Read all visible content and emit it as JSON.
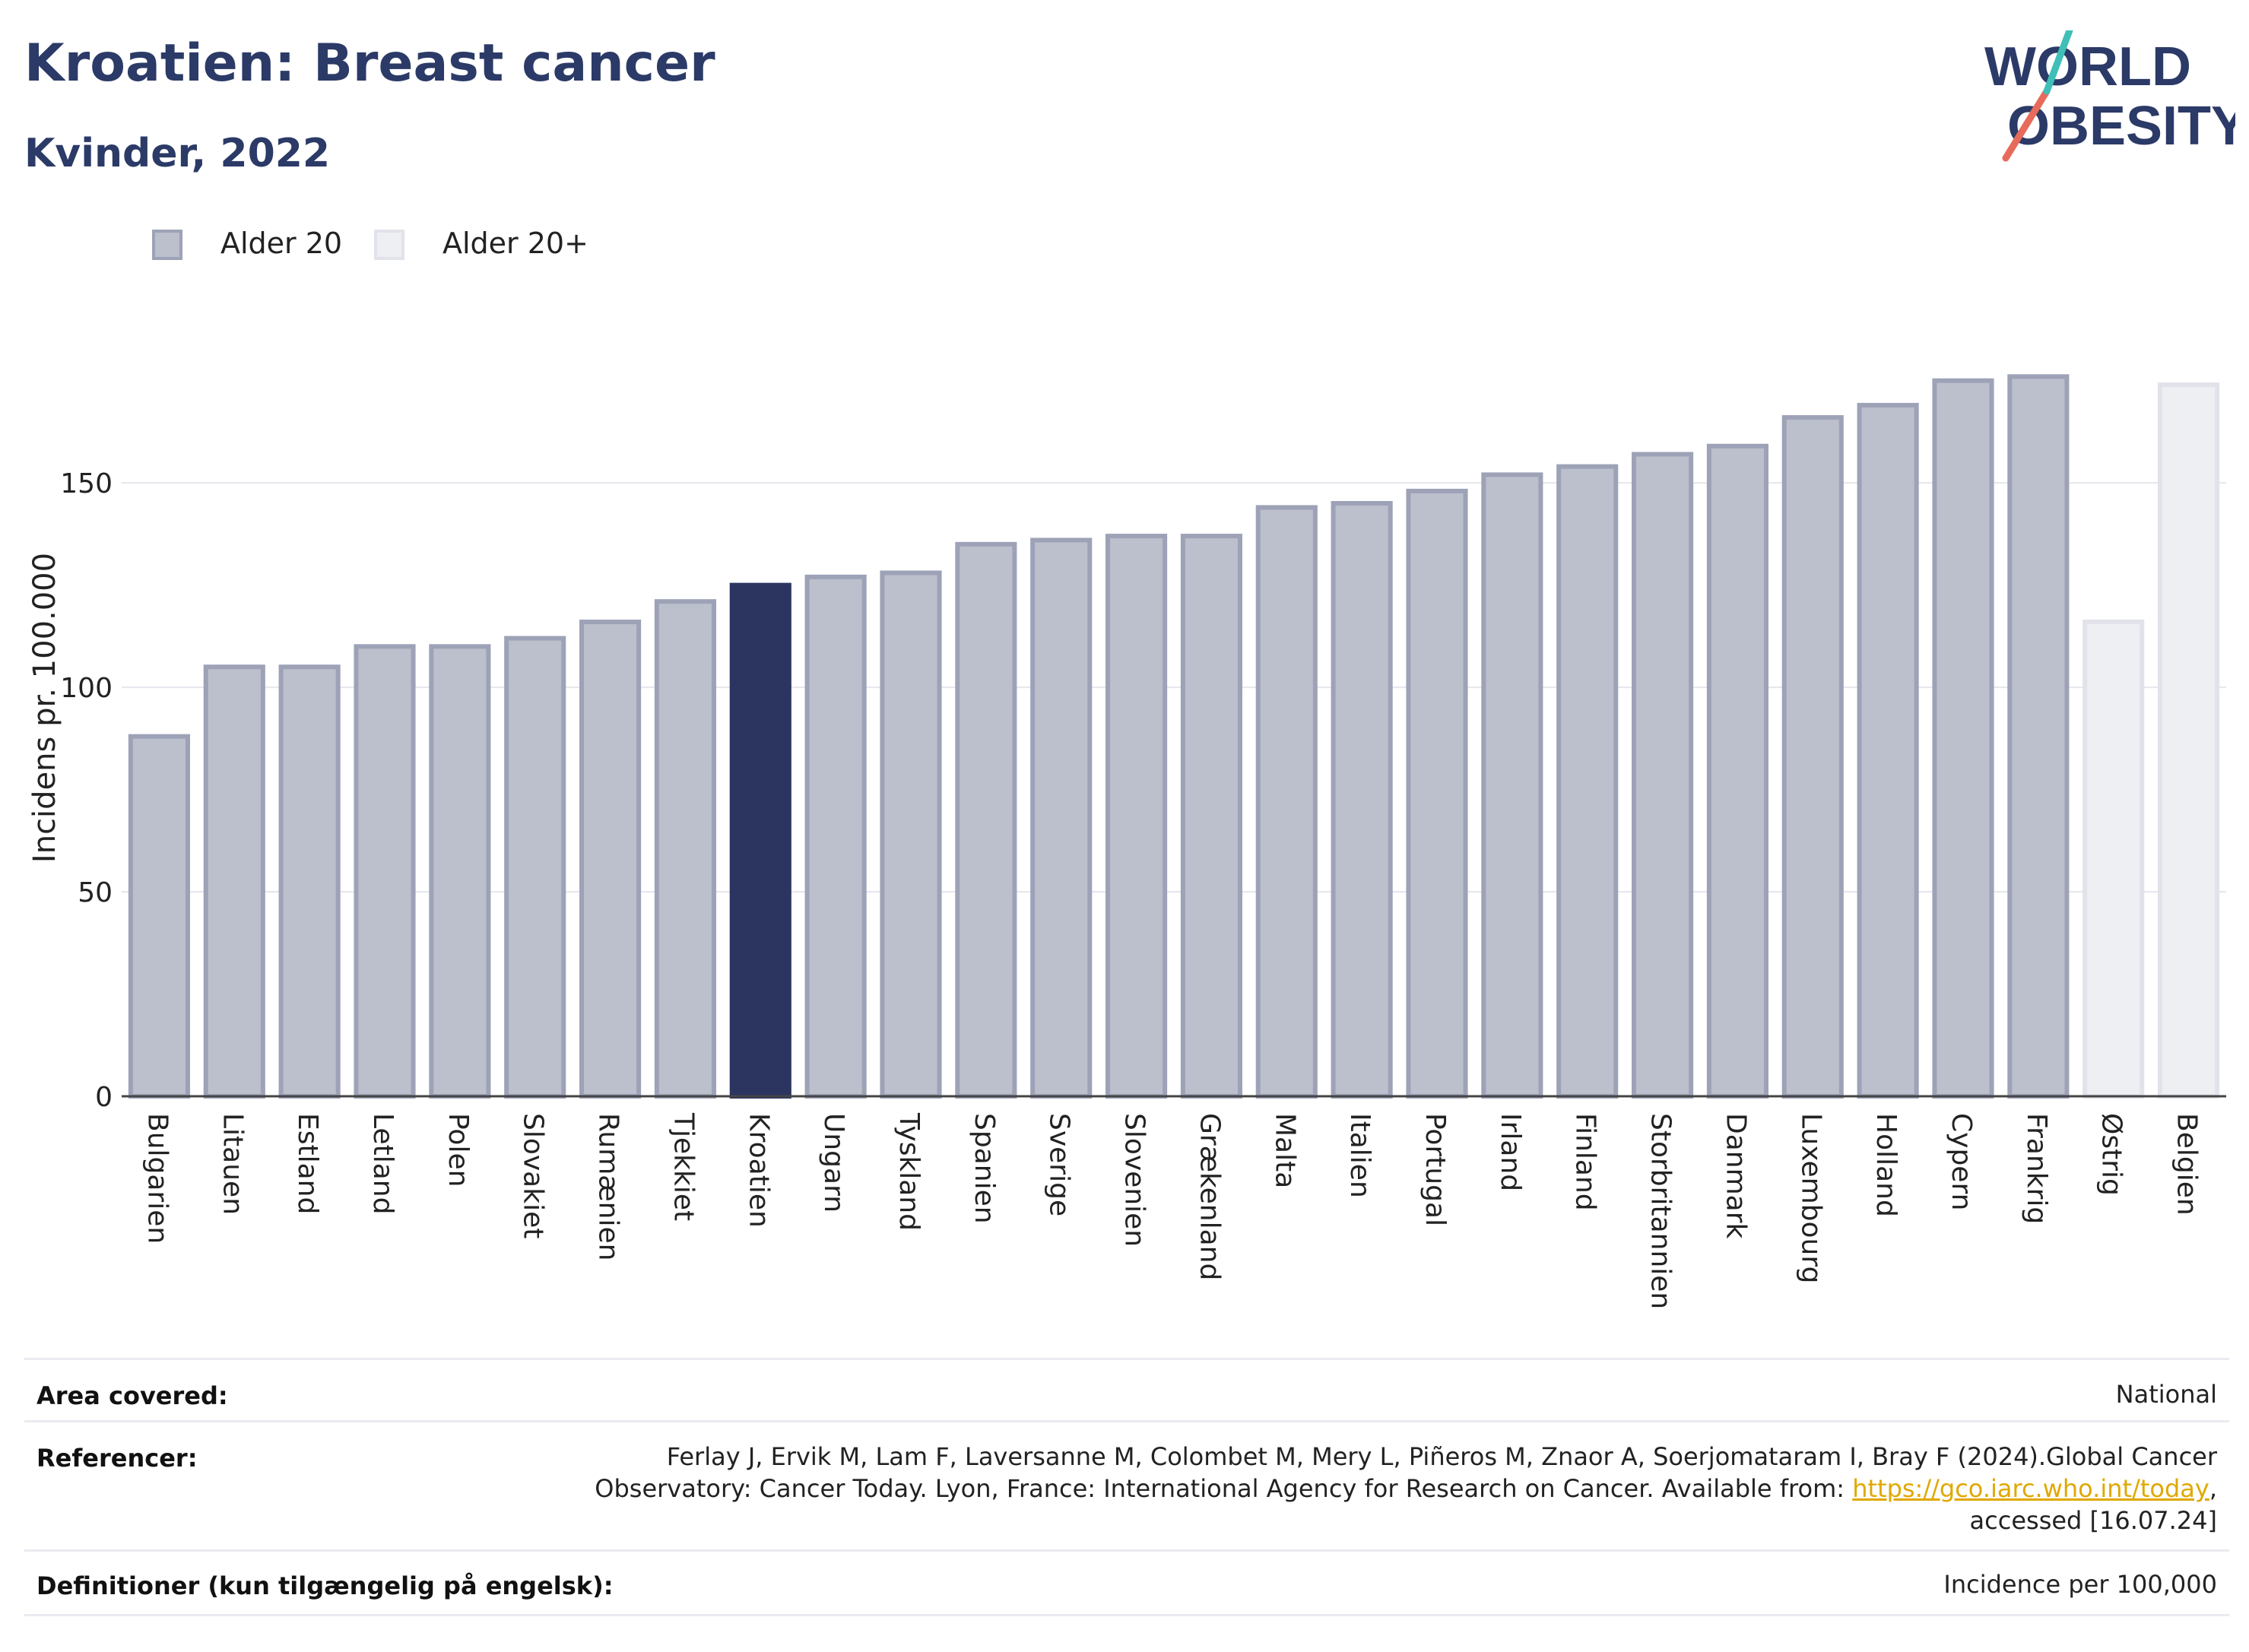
{
  "title": "Kroatien: Breast cancer",
  "subtitle": "Kvinder, 2022",
  "logo": {
    "line1": "WORLD",
    "line2": "OBESITY"
  },
  "legend": [
    {
      "label": "Alder 20",
      "color": "#bcbfcc",
      "border": "#9da2b7"
    },
    {
      "label": "Alder 20+",
      "color": "#eeeff3",
      "border": "#e2e3ea"
    }
  ],
  "chart_data": {
    "type": "bar",
    "ylabel": "Incidens pr. 100.000",
    "xlabel": "",
    "ylim": [
      0,
      190
    ],
    "yticks": [
      0,
      50,
      100,
      150
    ],
    "grid": true,
    "legend_position": "top-left",
    "categories": [
      "Bulgarien",
      "Litauen",
      "Estland",
      "Letland",
      "Polen",
      "Slovakiet",
      "Rumænien",
      "Tjekkiet",
      "Kroatien",
      "Ungarn",
      "Tyskland",
      "Spanien",
      "Sverige",
      "Slovenien",
      "Grækenland",
      "Malta",
      "Italien",
      "Portugal",
      "Irland",
      "Finland",
      "Storbritannien",
      "Danmark",
      "Luxembourg",
      "Holland",
      "Cypern",
      "Frankrig",
      "Østrig",
      "Belgien"
    ],
    "values": [
      88,
      105,
      105,
      110,
      110,
      112,
      116,
      121,
      125,
      127,
      128,
      135,
      136,
      137,
      137,
      144,
      145,
      148,
      152,
      154,
      157,
      159,
      166,
      169,
      175,
      176,
      116,
      174
    ],
    "series_of_bar": [
      "Alder 20",
      "Alder 20",
      "Alder 20",
      "Alder 20",
      "Alder 20",
      "Alder 20",
      "Alder 20",
      "Alder 20",
      "Alder 20",
      "Alder 20",
      "Alder 20",
      "Alder 20",
      "Alder 20",
      "Alder 20",
      "Alder 20",
      "Alder 20",
      "Alder 20",
      "Alder 20",
      "Alder 20",
      "Alder 20",
      "Alder 20",
      "Alder 20",
      "Alder 20",
      "Alder 20",
      "Alder 20",
      "Alder 20",
      "Alder 20+",
      "Alder 20+"
    ],
    "highlight": "Kroatien",
    "colors": {
      "base_fill": "#bcbfcc",
      "base_border": "#9da2b7",
      "highlight_fill": "#2b3560",
      "highlight_border": "#2b3560",
      "light_fill": "#eeeff3",
      "light_border": "#e2e3ea",
      "grid": "#e6e6ee",
      "axis": "#444444"
    }
  },
  "info": {
    "area": {
      "key": "Area covered:",
      "value": "National"
    },
    "refs": {
      "key": "Referencer:",
      "line1": "Ferlay J, Ervik M, Lam F, Laversanne M, Colombet M, Mery L, Piñeros M, Znaor A, Soerjomataram I, Bray F (2024).Global Cancer",
      "line2_pre": "Observatory: Cancer Today. Lyon, France: International Agency for Research on Cancer. Available from: ",
      "link": "https://gco.iarc.who.int/today",
      "line2_post": ",",
      "line3": "accessed [16.07.24]"
    },
    "defs": {
      "key": "Definitioner (kun tilgængelig på engelsk):",
      "value": "Incidence per 100,000"
    }
  }
}
